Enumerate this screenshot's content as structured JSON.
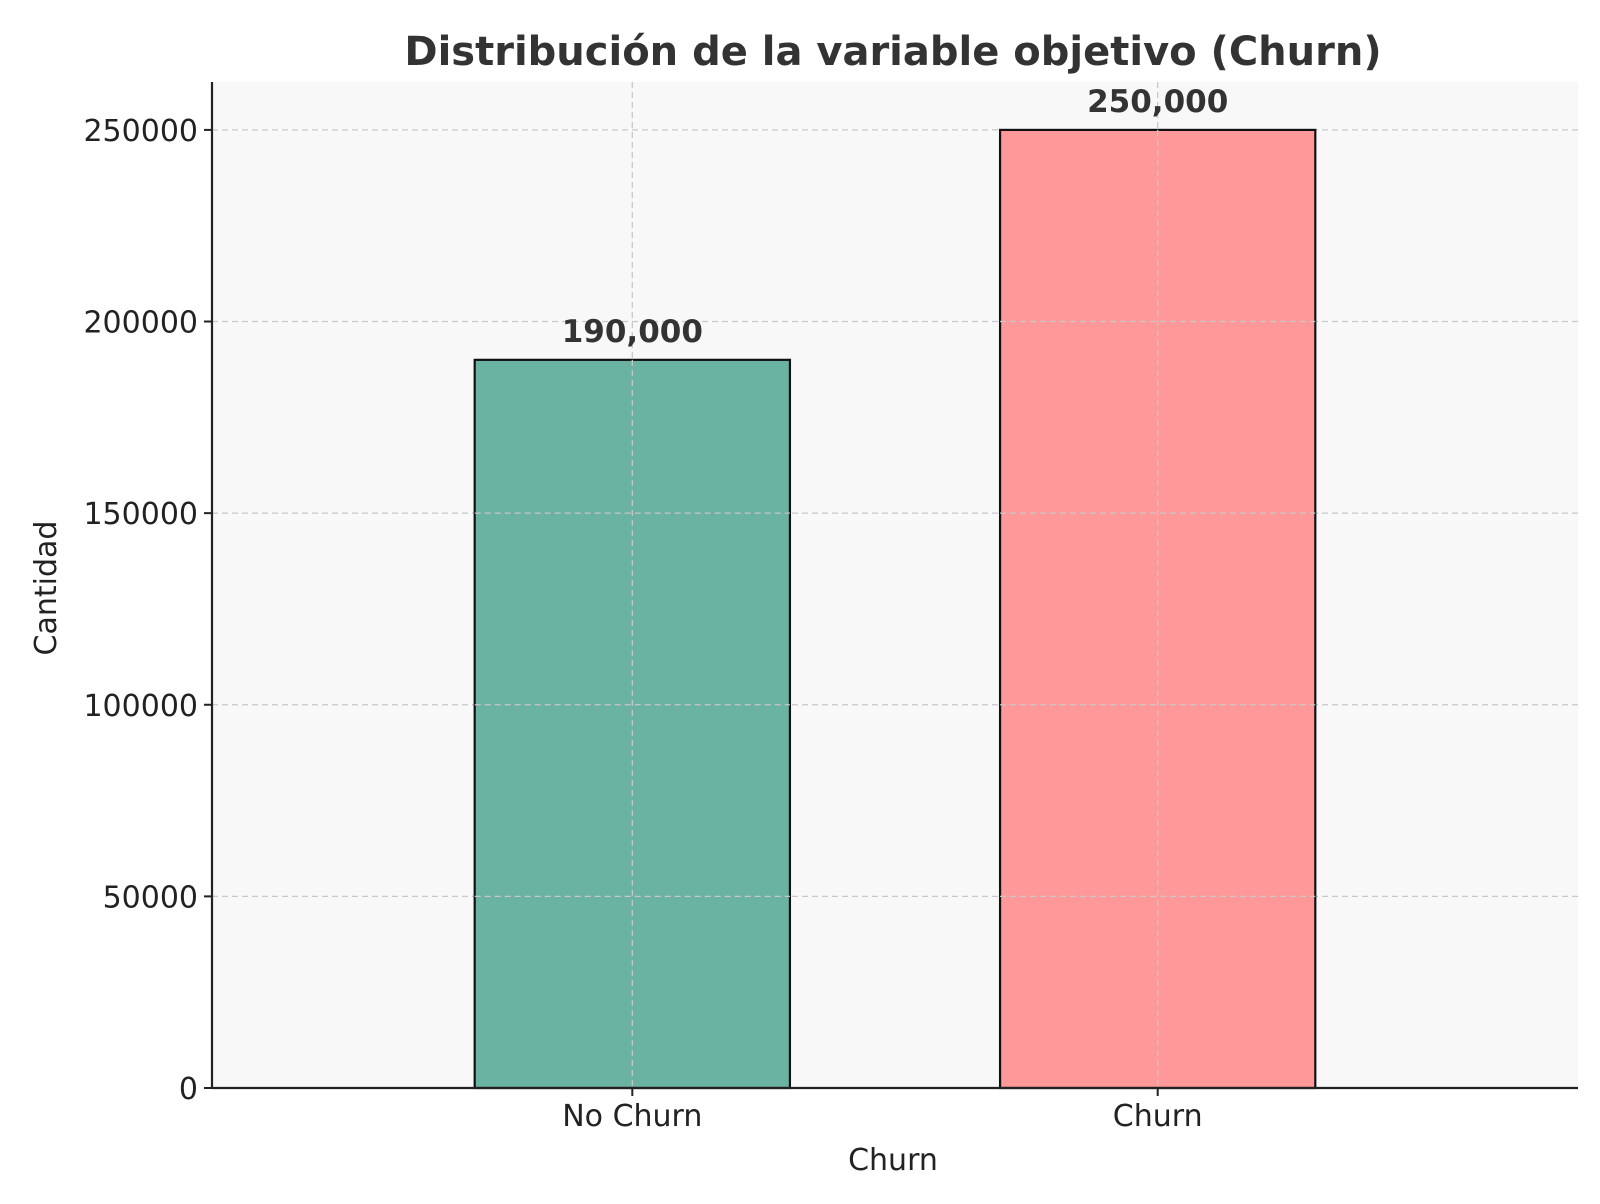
{
  "chart_data": {
    "type": "bar",
    "title": "Distribución de la variable objetivo (Churn)",
    "xlabel": "Churn",
    "ylabel": "Cantidad",
    "categories": [
      "No Churn",
      "Churn"
    ],
    "values": [
      190000,
      250000
    ],
    "value_labels": [
      "190,000",
      "250,000"
    ],
    "bar_colors": [
      "#6ab2a2",
      "#ff9898"
    ],
    "ylim": [
      0,
      262500
    ],
    "yticks": [
      0,
      50000,
      100000,
      150000,
      200000,
      250000
    ],
    "ytick_labels": [
      "0",
      "50000",
      "100000",
      "150000",
      "200000",
      "250000"
    ],
    "grid": true,
    "background_color": "#f8f8f8"
  }
}
